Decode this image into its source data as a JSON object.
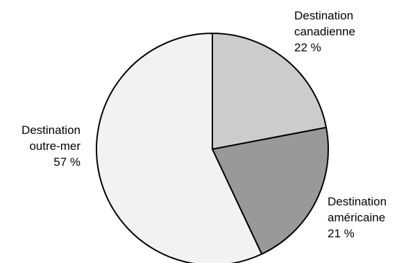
{
  "chart_data": {
    "type": "pie",
    "title": "",
    "start_angle_deg": 0,
    "direction": "clockwise",
    "slices": [
      {
        "label_lines": [
          "Destination",
          "canadienne"
        ],
        "value": 22,
        "value_text": "22 %",
        "color": "#cccccc",
        "label_side": "top-right"
      },
      {
        "label_lines": [
          "Destination",
          "américaine"
        ],
        "value": 21,
        "value_text": "21 %",
        "color": "#999999",
        "label_side": "bottom-right"
      },
      {
        "label_lines": [
          "Destination",
          "outre-mer"
        ],
        "value": 57,
        "value_text": "57 %",
        "color": "#f2f2f2",
        "label_side": "left"
      }
    ]
  }
}
